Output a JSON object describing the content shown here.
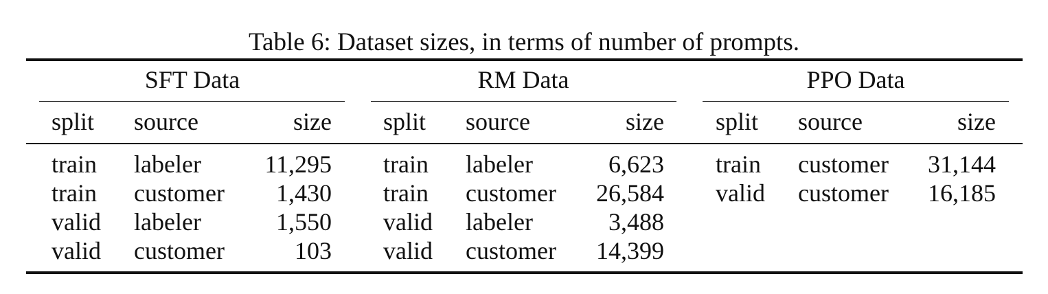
{
  "caption": "Table 6: Dataset sizes, in terms of number of prompts.",
  "groups": [
    {
      "title": "SFT Data",
      "headers": [
        "split",
        "source",
        "size"
      ],
      "rows": [
        [
          "train",
          "labeler",
          "11,295"
        ],
        [
          "train",
          "customer",
          "1,430"
        ],
        [
          "valid",
          "labeler",
          "1,550"
        ],
        [
          "valid",
          "customer",
          "103"
        ]
      ]
    },
    {
      "title": "RM Data",
      "headers": [
        "split",
        "source",
        "size"
      ],
      "rows": [
        [
          "train",
          "labeler",
          "6,623"
        ],
        [
          "train",
          "customer",
          "26,584"
        ],
        [
          "valid",
          "labeler",
          "3,488"
        ],
        [
          "valid",
          "customer",
          "14,399"
        ]
      ]
    },
    {
      "title": "PPO Data",
      "headers": [
        "split",
        "source",
        "size"
      ],
      "rows": [
        [
          "train",
          "customer",
          "31,144"
        ],
        [
          "valid",
          "customer",
          "16,185"
        ]
      ]
    }
  ]
}
